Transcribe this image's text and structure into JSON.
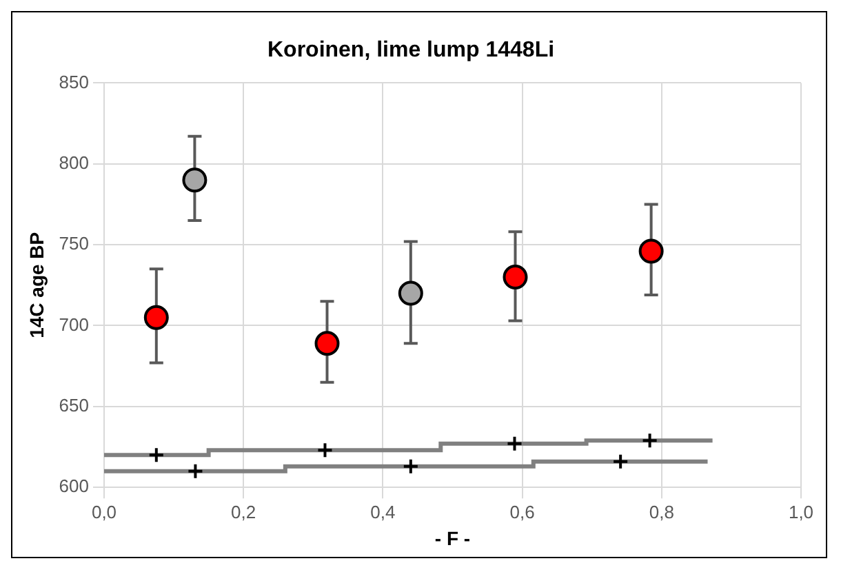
{
  "chart_data": {
    "type": "scatter",
    "title": "Koroinen, lime lump 1448Li",
    "xlabel": "- F -",
    "ylabel": "14C age BP",
    "xlim": [
      0,
      1
    ],
    "xticks": [
      {
        "value": 0,
        "label": "0,0"
      },
      {
        "value": 0.2,
        "label": "0,2"
      },
      {
        "value": 0.4,
        "label": "0,4"
      },
      {
        "value": 0.6,
        "label": "0,6"
      },
      {
        "value": 0.8,
        "label": "0,8"
      },
      {
        "value": 1,
        "label": "1,0"
      }
    ],
    "ylim": [
      600,
      850
    ],
    "yticks": [
      600,
      650,
      700,
      750,
      800,
      850
    ],
    "grid": true,
    "legend": false,
    "series": [
      {
        "type": "step",
        "color": "#808080",
        "marker": "none",
        "x": [
          0,
          0.15,
          0.483,
          0.692,
          0.873
        ],
        "values": [
          620,
          623,
          627,
          629,
          629
        ]
      },
      {
        "type": "step",
        "color": "#808080",
        "marker": "none",
        "x": [
          0,
          0.26,
          0.616,
          0.866
        ],
        "values": [
          610,
          613,
          616,
          616
        ]
      },
      {
        "color": "#000000",
        "marker": "cross",
        "x": [
          0.075,
          0.317,
          0.589,
          0.783
        ],
        "values": [
          620,
          623,
          627,
          629
        ]
      },
      {
        "color": "#000000",
        "marker": "cross",
        "x": [
          0.131,
          0.44,
          0.741
        ],
        "values": [
          610,
          613,
          616
        ]
      },
      {
        "color": "#a6a6a6",
        "marker": "circle",
        "x": [
          0.13,
          0.44
        ],
        "values": [
          790,
          720
        ],
        "errors": [
          [
            765,
            817
          ],
          [
            689,
            752
          ]
        ]
      },
      {
        "color": "#ff0000",
        "marker": "circle",
        "x": [
          0.075,
          0.32,
          0.59,
          0.785
        ],
        "values": [
          705,
          689,
          730,
          746
        ],
        "errors": [
          [
            677,
            735
          ],
          [
            665,
            715
          ],
          [
            703,
            758
          ],
          [
            719,
            775
          ]
        ]
      }
    ]
  }
}
